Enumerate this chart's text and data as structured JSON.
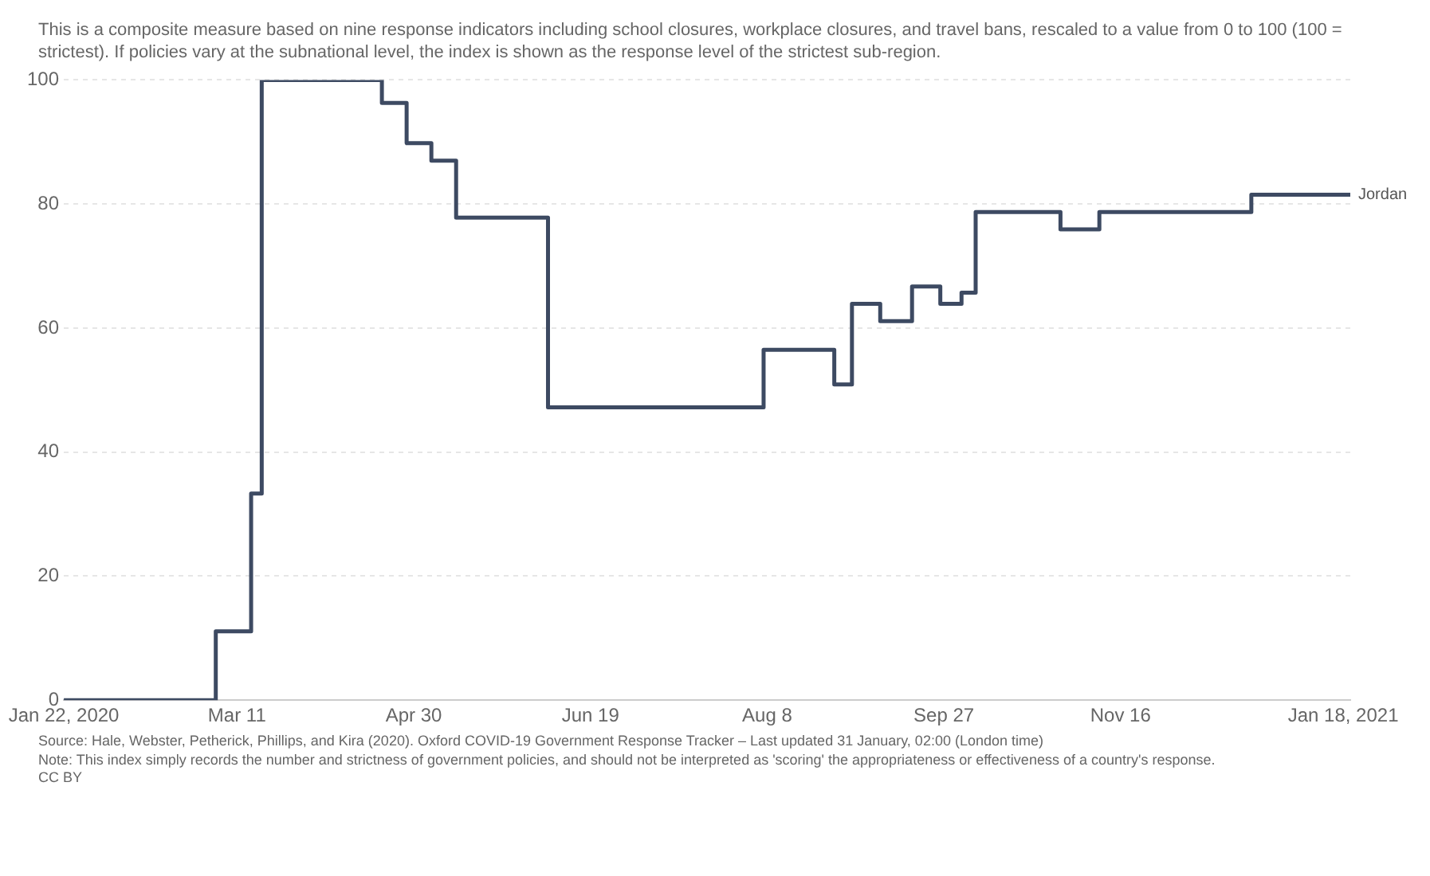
{
  "chart_data": {
    "type": "step",
    "subtitle": "This is a composite measure based on nine response indicators including school closures, workplace closures, and travel bans, rescaled to a value from 0 to 100 (100 = strictest). If policies vary at the subnational level, the index is shown as the response level of the strictest sub-region.",
    "x": [
      "2020-01-22",
      "2020-03-05",
      "2020-03-15",
      "2020-03-18",
      "2020-04-21",
      "2020-04-28",
      "2020-05-05",
      "2020-05-12",
      "2020-06-07",
      "2020-08-07",
      "2020-08-27",
      "2020-09-01",
      "2020-09-09",
      "2020-09-18",
      "2020-09-26",
      "2020-10-02",
      "2020-10-06",
      "2020-10-30",
      "2020-11-10",
      "2020-12-23",
      "2021-01-20"
    ],
    "series": [
      {
        "name": "Jordan",
        "color": "#3d4a62",
        "values": [
          0,
          11.1,
          33.3,
          100,
          96.3,
          89.8,
          87,
          77.8,
          47.2,
          56.5,
          50.9,
          63.9,
          61.1,
          66.7,
          63.9,
          65.7,
          78.7,
          75.9,
          78.7,
          81.5,
          81.5
        ]
      }
    ],
    "xlim": [
      "2020-01-22",
      "2021-01-20"
    ],
    "xticks": [
      {
        "value": "2020-01-22",
        "label": "Jan 22, 2020"
      },
      {
        "value": "2020-03-11",
        "label": "Mar 11"
      },
      {
        "value": "2020-04-30",
        "label": "Apr 30"
      },
      {
        "value": "2020-06-19",
        "label": "Jun 19"
      },
      {
        "value": "2020-08-08",
        "label": "Aug 8"
      },
      {
        "value": "2020-09-27",
        "label": "Sep 27"
      },
      {
        "value": "2020-11-16",
        "label": "Nov 16"
      },
      {
        "value": "2021-01-18",
        "label": "Jan 18, 2021"
      }
    ],
    "ylim": [
      0,
      100
    ],
    "yticks": [
      0,
      20,
      40,
      60,
      80,
      100
    ],
    "grid": "y",
    "legend": false,
    "annotations": [
      "Source: Hale, Webster, Petherick, Phillips, and Kira (2020). Oxford COVID-19 Government Response Tracker – Last updated 31 January, 02:00 (London time)",
      "Note: This index simply records the number and strictness of government policies, and should not be interpreted as 'scoring' the appropriateness or effectiveness of a country's response.",
      "CC BY"
    ]
  }
}
